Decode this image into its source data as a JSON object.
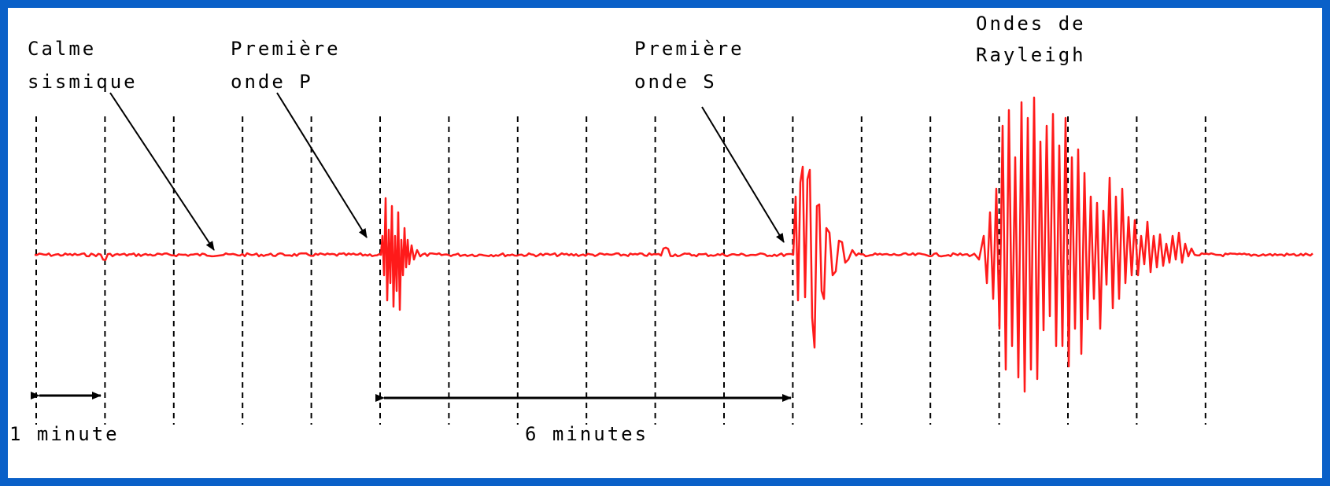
{
  "labels": {
    "calm": [
      "Calme",
      "sismique"
    ],
    "p_wave": [
      "Première",
      "onde P"
    ],
    "s_wave": [
      "Première",
      "onde S"
    ],
    "rayleigh": [
      "Ondes de",
      "Rayleigh"
    ],
    "one_minute": "1 minute",
    "six_minutes": "6 minutes"
  },
  "colors": {
    "frame": "#0a60c8",
    "trace": "#ff1a1a",
    "grid": "#000000",
    "arrow": "#000000",
    "background": "#ffffff"
  },
  "timeline": {
    "minute_marks": 18,
    "p_arrival_minute": 5,
    "s_arrival_minute": 11,
    "interval_minutes": 6
  }
}
